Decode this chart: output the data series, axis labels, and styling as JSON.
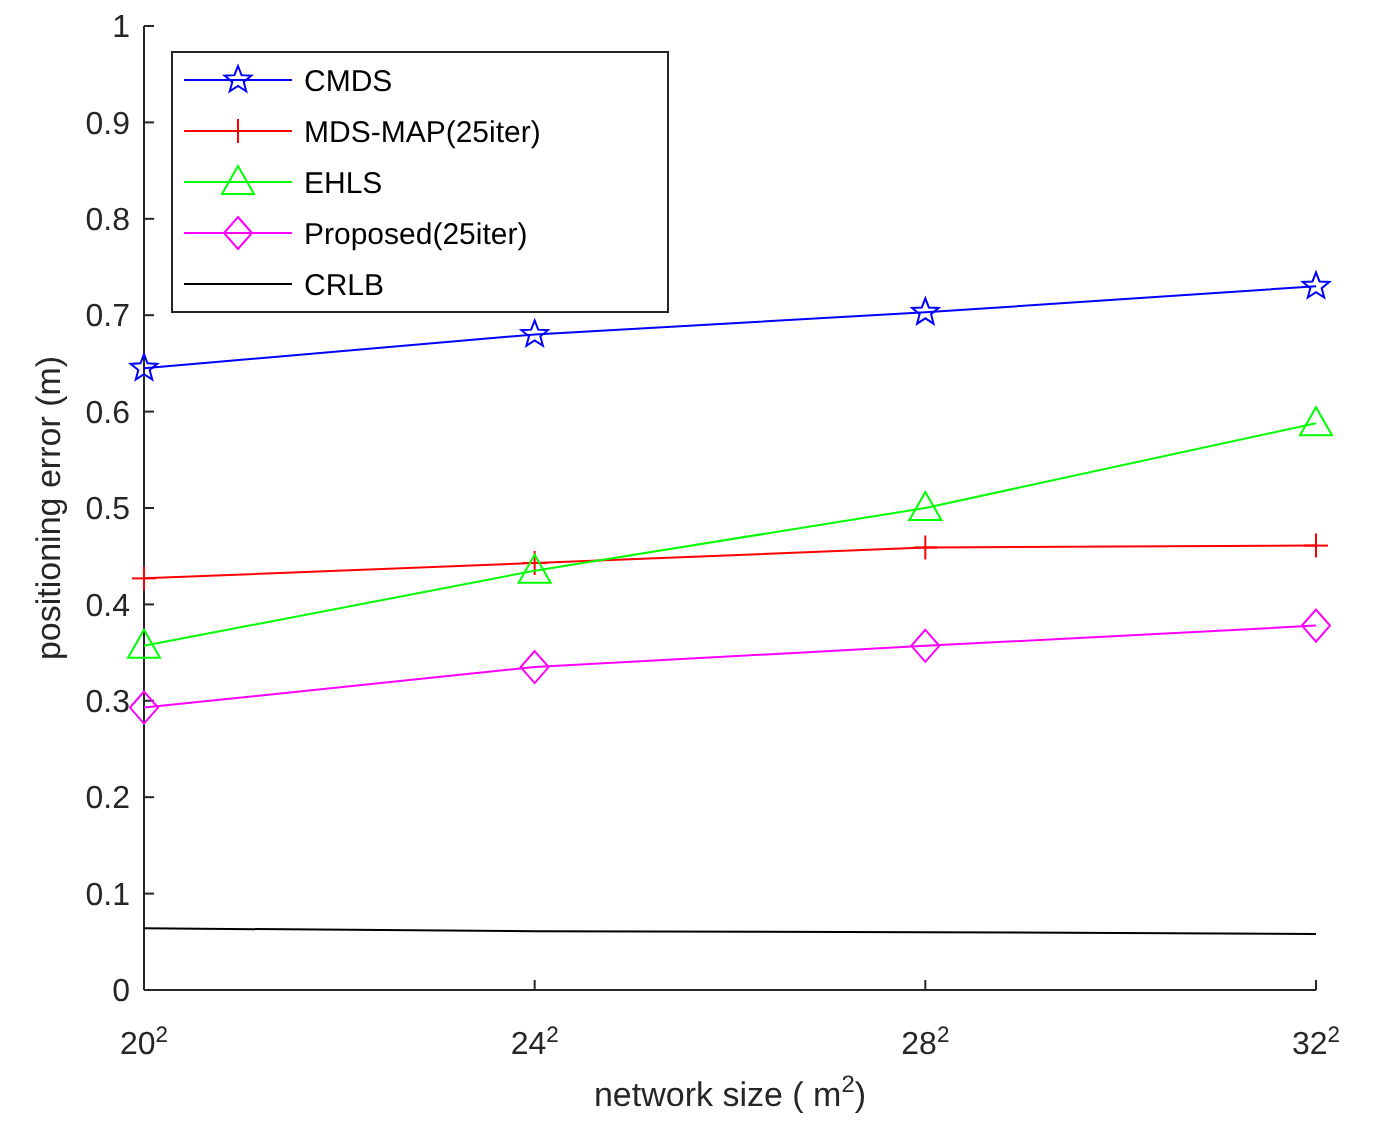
{
  "chart_data": {
    "type": "line",
    "xlabel": "network size ( m$^{2}$)",
    "ylabel": "positioning error (m)",
    "categories": [
      "20$^{2}$",
      "24$^{2}$",
      "28$^{2}$",
      "32$^{2}$"
    ],
    "ylim": [
      0,
      1
    ],
    "yticks": [
      0,
      0.1,
      0.2,
      0.3,
      0.4,
      0.5,
      0.6,
      0.7,
      0.8,
      0.9,
      1
    ],
    "grid": false,
    "legend": "top left",
    "line_style": "solid",
    "series": [
      {
        "name": "CMDS",
        "color": "#0000ff",
        "marker": "star",
        "values": [
          0.645,
          0.68,
          0.703,
          0.73
        ]
      },
      {
        "name": "MDS-MAP(25iter)",
        "color": "#ff0000",
        "marker": "cross",
        "values": [
          0.427,
          0.443,
          0.459,
          0.461
        ]
      },
      {
        "name": "EHLS",
        "color": "#00ff00",
        "marker": "triangle",
        "values": [
          0.357,
          0.435,
          0.5,
          0.588
        ]
      },
      {
        "name": "Proposed(25iter)",
        "color": "#ff00ff",
        "marker": "diamond",
        "values": [
          0.293,
          0.335,
          0.357,
          0.378
        ]
      },
      {
        "name": "CRLB",
        "color": "#000000",
        "marker": "none",
        "values": [
          0.064,
          0.061,
          0.06,
          0.058
        ]
      }
    ]
  }
}
